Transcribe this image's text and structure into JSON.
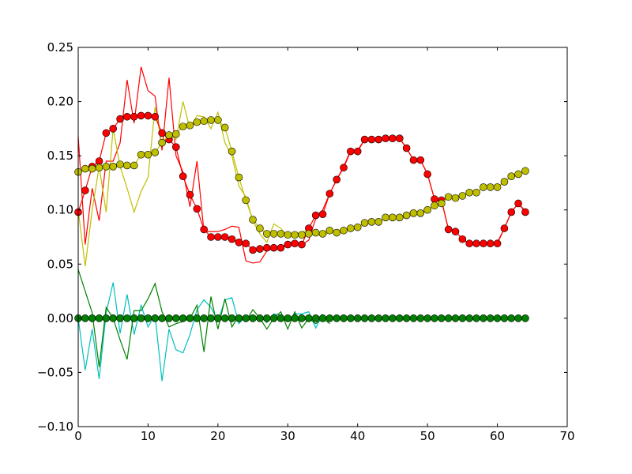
{
  "chart_data": {
    "type": "line",
    "x": [
      0,
      1,
      2,
      3,
      4,
      5,
      6,
      7,
      8,
      9,
      10,
      11,
      12,
      13,
      14,
      15,
      16,
      17,
      18,
      19,
      20,
      21,
      22,
      23,
      24,
      25,
      26,
      27,
      28,
      29,
      30,
      31,
      32,
      33,
      34,
      35,
      36,
      37,
      38,
      39,
      40,
      41,
      42,
      43,
      44,
      45,
      46,
      47,
      48,
      49,
      50,
      51,
      52,
      53,
      54,
      55,
      56,
      57,
      58,
      59,
      60,
      61,
      62,
      63,
      64
    ],
    "xlim": [
      0,
      70
    ],
    "xticks": [
      0,
      10,
      20,
      30,
      40,
      50,
      60,
      70
    ],
    "ylim": [
      -0.1,
      0.25
    ],
    "yticks": [
      {
        "value": -0.1,
        "label": "−0.10"
      },
      {
        "value": -0.05,
        "label": "−0.05"
      },
      {
        "value": 0,
        "label": "0.00"
      },
      {
        "value": 0.05,
        "label": "0.05"
      },
      {
        "value": 0.1,
        "label": "0.10"
      },
      {
        "value": 0.15,
        "label": "0.15"
      },
      {
        "value": 0.2,
        "label": "0.20"
      },
      {
        "value": 0.25,
        "label": "0.25"
      }
    ],
    "grid": false,
    "series": [
      {
        "color": "#ff0000",
        "marker": false,
        "values": [
          0.168,
          0.068,
          0.12,
          0.09,
          0.145,
          0.145,
          0.162,
          0.22,
          0.18,
          0.232,
          0.21,
          0.205,
          0.155,
          0.222,
          0.15,
          0.135,
          0.103,
          0.145,
          0.08,
          0.08,
          0.08,
          0.082,
          0.085,
          0.084,
          0.053,
          0.051,
          0.052,
          0.062,
          0.065,
          0.065,
          0.07,
          0.07,
          0.068,
          0.072,
          0.092,
          0.1,
          0.115,
          0.128,
          0.14,
          0.155,
          0.155,
          0.165,
          0.165,
          0.165,
          0.166,
          0.166,
          0.166,
          0.157,
          0.146,
          0.146,
          0.133,
          0.11,
          0.109,
          0.082,
          0.08,
          0.073,
          0.069,
          0.069,
          0.069,
          0.069,
          0.07,
          0.083,
          0.098,
          0.106,
          0.099
        ]
      },
      {
        "color": "#bfbf00",
        "marker": false,
        "values": [
          0.1,
          0.048,
          0.1,
          0.14,
          0.098,
          0.175,
          0.14,
          0.12,
          0.098,
          0.117,
          0.13,
          0.195,
          0.16,
          0.17,
          0.165,
          0.2,
          0.175,
          0.187,
          0.186,
          0.175,
          0.19,
          0.162,
          0.15,
          0.122,
          0.112,
          0.09,
          0.078,
          0.07,
          0.087,
          0.083,
          0.075,
          0.077,
          0.08,
          0.08,
          0.078,
          0.075,
          0.08,
          0.08,
          0.08,
          0.083,
          0.084,
          0.088,
          0.089,
          0.089,
          0.093,
          0.093,
          0.093,
          0.095,
          0.097,
          0.097,
          0.1,
          0.104,
          0.106,
          0.112,
          0.111,
          0.113,
          0.116,
          0.116,
          0.121,
          0.121,
          0.121,
          0.126,
          0.131,
          0.133,
          0.136
        ]
      },
      {
        "color": "#00bfbf",
        "marker": false,
        "values": [
          0.0,
          -0.048,
          -0.01,
          -0.056,
          0.005,
          0.033,
          -0.014,
          0.022,
          -0.015,
          0.012,
          -0.008,
          0.003,
          -0.058,
          -0.01,
          -0.029,
          -0.032,
          -0.015,
          0.008,
          0.017,
          0.01,
          -0.003,
          0.017,
          0.019,
          -0.005,
          0.002,
          0.0,
          0.002,
          -0.004,
          0.004,
          0.003,
          -0.003,
          0.004,
          0.004,
          0.006,
          -0.009,
          0.004,
          null,
          null,
          null,
          null,
          null,
          null,
          null,
          null,
          null,
          null,
          null,
          null,
          null,
          null,
          null,
          null,
          null,
          null,
          null,
          null,
          null,
          null,
          null,
          null,
          null,
          null,
          null,
          null,
          null
        ]
      },
      {
        "color": "#008000",
        "marker": false,
        "values": [
          0.045,
          0.025,
          0.005,
          -0.045,
          0.01,
          0.0,
          -0.02,
          -0.038,
          0.007,
          0.007,
          0.018,
          0.032,
          0.006,
          -0.008,
          -0.005,
          -0.003,
          0.0,
          0.012,
          -0.031,
          0.02,
          -0.01,
          0.018,
          -0.008,
          0.002,
          -0.003,
          0.008,
          0.0,
          -0.01,
          0.0,
          0.006,
          -0.01,
          0.006,
          -0.009,
          0.0,
          -0.005,
          0.0,
          -0.005,
          null,
          null,
          null,
          null,
          null,
          null,
          null,
          null,
          null,
          null,
          null,
          null,
          null,
          null,
          null,
          null,
          null,
          null,
          null,
          null,
          null,
          null,
          null,
          null,
          null,
          null,
          null,
          null
        ]
      },
      {
        "color": "#ff0000",
        "marker": true,
        "values": [
          0.098,
          0.118,
          0.14,
          0.145,
          0.171,
          0.175,
          0.184,
          0.186,
          0.186,
          0.187,
          0.187,
          0.186,
          0.171,
          0.165,
          0.158,
          0.131,
          0.114,
          0.101,
          0.082,
          0.075,
          0.075,
          0.075,
          0.073,
          0.07,
          0.069,
          0.063,
          0.064,
          0.065,
          0.065,
          0.065,
          0.068,
          0.069,
          0.068,
          0.083,
          0.095,
          0.096,
          0.115,
          0.128,
          0.139,
          0.154,
          0.154,
          0.165,
          0.165,
          0.165,
          0.166,
          0.166,
          0.166,
          0.157,
          0.146,
          0.146,
          0.133,
          0.11,
          0.109,
          0.082,
          0.08,
          0.073,
          0.069,
          0.069,
          0.069,
          0.069,
          0.069,
          0.083,
          0.098,
          0.106,
          0.098
        ]
      },
      {
        "color": "#bfbf00",
        "marker": true,
        "values": [
          0.135,
          0.138,
          0.138,
          0.139,
          0.14,
          0.14,
          0.142,
          0.141,
          0.141,
          0.151,
          0.151,
          0.153,
          0.162,
          0.169,
          0.17,
          0.177,
          0.178,
          0.181,
          0.182,
          0.183,
          0.183,
          0.176,
          0.154,
          0.13,
          0.109,
          0.091,
          0.083,
          0.078,
          0.078,
          0.078,
          0.077,
          0.077,
          0.077,
          0.078,
          0.079,
          0.078,
          0.081,
          0.079,
          0.081,
          0.083,
          0.084,
          0.088,
          0.089,
          0.089,
          0.093,
          0.093,
          0.093,
          0.095,
          0.097,
          0.097,
          0.1,
          0.104,
          0.106,
          0.112,
          0.111,
          0.113,
          0.116,
          0.116,
          0.121,
          0.121,
          0.121,
          0.126,
          0.131,
          0.133,
          0.136
        ]
      },
      {
        "color": "#008000",
        "marker": true,
        "values": [
          0,
          0,
          0,
          0,
          0,
          0,
          0,
          0,
          0,
          0,
          0,
          0,
          0,
          0,
          0,
          0,
          0,
          0,
          0,
          0,
          0,
          0,
          0,
          0,
          0,
          0,
          0,
          0,
          0,
          0,
          0,
          0,
          0,
          0,
          0,
          0,
          0,
          0,
          0,
          0,
          0,
          0,
          0,
          0,
          0,
          0,
          0,
          0,
          0,
          0,
          0,
          0,
          0,
          0,
          0,
          0,
          0,
          0,
          0,
          0,
          0,
          0,
          0,
          0,
          0
        ]
      }
    ]
  }
}
